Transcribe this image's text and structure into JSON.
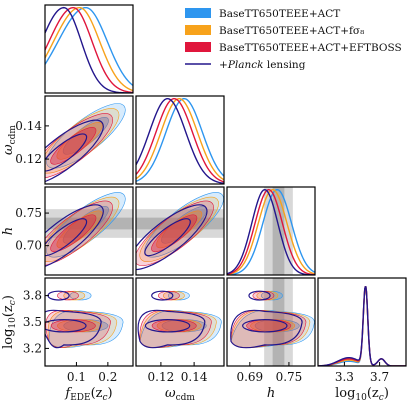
{
  "chart_data": {
    "type": "triangle-corner-plot",
    "parameters": [
      {
        "key": "fEDE",
        "label_main": "f",
        "label_sub": "EDE",
        "label_tail": "(z",
        "label_tail_sub": "c",
        "label_end": ")",
        "range": [
          0.0,
          0.28
        ],
        "ticks": [
          0.1,
          0.2
        ],
        "tick_labels": [
          "0.1",
          "0.2"
        ]
      },
      {
        "key": "omega_cdm",
        "label_main": "ω",
        "label_sub": "cdm",
        "label_tail": "",
        "label_tail_sub": "",
        "label_end": "",
        "range": [
          0.105,
          0.158
        ],
        "ticks": [
          0.12,
          0.14
        ],
        "tick_labels": [
          "0.12",
          "0.14"
        ]
      },
      {
        "key": "h",
        "label_main": "h",
        "label_sub": "",
        "label_tail": "",
        "label_tail_sub": "",
        "label_end": "",
        "range": [
          0.655,
          0.79
        ],
        "ticks": [
          0.69,
          0.75
        ],
        "tick_labels": [
          "0.69",
          "0.75"
        ]
      },
      {
        "key": "log10zc",
        "label_main": "log",
        "label_sub": "10",
        "label_tail": "(z",
        "label_tail_sub": "c",
        "label_end": ")",
        "range": [
          3.0,
          4.0
        ],
        "ticks": [
          3.3,
          3.7
        ],
        "tick_labels": [
          "3.3",
          "3.7"
        ]
      }
    ],
    "y_ticks": {
      "omega_cdm": {
        "ticks": [
          0.12,
          0.14
        ],
        "tick_labels": [
          "0.12",
          "0.14"
        ]
      },
      "h": {
        "ticks": [
          0.7,
          0.75
        ],
        "tick_labels": [
          "0.70",
          "0.75"
        ]
      },
      "log10zc": {
        "ticks": [
          3.2,
          3.5,
          3.8
        ],
        "tick_labels": [
          "3.2",
          "3.5",
          "3.8"
        ]
      }
    },
    "shaded_bands": {
      "h": {
        "outer": [
          0.712,
          0.756
        ],
        "inner": [
          0.725,
          0.743
        ]
      }
    },
    "series": [
      {
        "name": "BaseTT650TEEE+ACT",
        "color": "#2e96ef",
        "kind": "filled",
        "peaks": {
          "fEDE": 0.13,
          "omega_cdm": 0.134,
          "h": 0.732,
          "log10zc": 3.54
        },
        "widths": {
          "fEDE": 0.08,
          "omega_cdm": 0.011,
          "h": 0.022
        }
      },
      {
        "name": "BaseTT650TEEE+ACT+fσ₈",
        "color": "#f7a21b",
        "kind": "filled",
        "peaks": {
          "fEDE": 0.11,
          "omega_cdm": 0.131,
          "h": 0.725,
          "log10zc": 3.54
        },
        "widths": {
          "fEDE": 0.075,
          "omega_cdm": 0.011,
          "h": 0.022
        }
      },
      {
        "name": "BaseTT650TEEE+ACT+EFTBOSS",
        "color": "#e0163c",
        "kind": "filled",
        "peaks": {
          "fEDE": 0.09,
          "omega_cdm": 0.128,
          "h": 0.719,
          "log10zc": 3.54
        },
        "widths": {
          "fEDE": 0.07,
          "omega_cdm": 0.011,
          "h": 0.021
        }
      },
      {
        "name": "+Planck lensing",
        "name_prefix": "+",
        "name_italic": "Planck",
        "name_suffix": " lensing",
        "color": "#23168c",
        "kind": "line",
        "peaks": {
          "fEDE": 0.06,
          "omega_cdm": 0.124,
          "h": 0.713,
          "log10zc": 3.54
        },
        "widths": {
          "fEDE": 0.065,
          "omega_cdm": 0.011,
          "h": 0.02
        }
      }
    ],
    "legend": {
      "placement": "top-right"
    }
  }
}
